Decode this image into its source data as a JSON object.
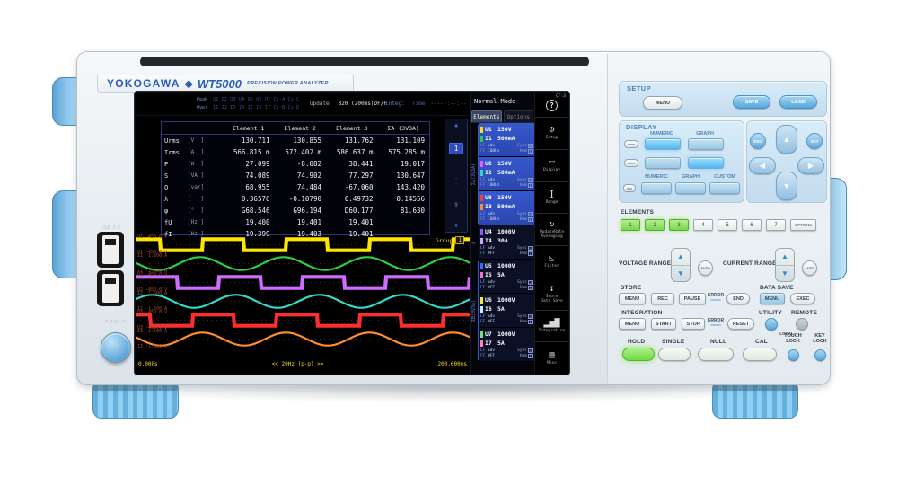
{
  "brand": {
    "logo": "YOKOGAWA",
    "diamond": "◆",
    "model": "WT5000",
    "subtitle": "PRECISION POWER ANALYZER"
  },
  "left_side": {
    "usb_label": "USB 2.0",
    "power_label": "POWER"
  },
  "screen": {
    "status": {
      "peak_label": "Peak",
      "peak_values": "U1 U2 U3 U4 U5 U6 U7 Cs-A Cs-C",
      "over_label": "Over",
      "over_values": "I1 I2 I3 I4 I5 I6 I7 Cs-B Cs-D",
      "update_label": "Update",
      "update_value": "320 (200ms)DF/F",
      "integ_label": "Integ:",
      "time_label": "Time",
      "time_value": "-----:--:--",
      "mode": "Normal Mode"
    },
    "table": {
      "headers": [
        "Element 1",
        "Element 2",
        "Element 3",
        "ΣA (3V3A)"
      ],
      "rows": [
        {
          "name": "Urms",
          "unit": "[V  ]",
          "values": [
            "130.711",
            "130.855",
            "131.762",
            "131.109"
          ]
        },
        {
          "name": "Irms",
          "unit": "[A  ]",
          "values": [
            "566.815 m",
            "572.402 m",
            "586.637 m",
            "575.285 m"
          ]
        },
        {
          "name": "P",
          "unit": "[W  ]",
          "values": [
            "27.099",
            "-8.082",
            "38.441",
            "19.017"
          ]
        },
        {
          "name": "S",
          "unit": "[VA ]",
          "values": [
            "74.089",
            "74.902",
            "77.297",
            "130.647"
          ]
        },
        {
          "name": "Q",
          "unit": "[var]",
          "values": [
            "68.955",
            "74.484",
            "-67.060",
            "143.420"
          ]
        },
        {
          "name": "λ",
          "unit": "[   ]",
          "values": [
            "0.36576",
            "-0.10790",
            "0.49732",
            "0.14556"
          ]
        },
        {
          "name": "φ",
          "unit": "[°  ]",
          "values": [
            "G68.546",
            "G96.194",
            "D60.177",
            "81.630"
          ]
        },
        {
          "name": "fU",
          "unit": "[Hz ]",
          "values": [
            "19.400",
            "19.401",
            "19.401",
            ""
          ]
        },
        {
          "name": "fI",
          "unit": "[Hz ]",
          "values": [
            "19.399",
            "19.403",
            "19.401",
            ""
          ]
        }
      ]
    },
    "pager": {
      "up": "▲",
      "current": "1",
      "dots": "·\n·\n·",
      "last": "9",
      "down": "▼"
    },
    "elements_panel": {
      "tabs": [
        "Elements",
        "Options"
      ],
      "group_a": "ΣA(3V3A)",
      "group_4": "4",
      "group_b": "ΣB(3V3A)",
      "items": [
        {
          "u": "U1",
          "u_range": "150V",
          "u_color": "#ffdf00",
          "i": "I1",
          "i_range": "500mA",
          "i_color": "#2ecc40",
          "lf": "LF",
          "ff": "FF",
          "adv": "Adv",
          "freq": "100Hz",
          "sync": "Sync",
          "hrm": "Hrm",
          "sync_badge": "U",
          "hrm_badge": "1",
          "active": true
        },
        {
          "u": "U2",
          "u_range": "150V",
          "u_color": "#e55fff",
          "i": "I2",
          "i_range": "500mA",
          "i_color": "#35d8c5",
          "lf": "LF",
          "ff": "FF",
          "adv": "Adv",
          "freq": "100Hz",
          "sync": "Sync",
          "hrm": "Hrm",
          "sync_badge": "U",
          "hrm_badge": "1",
          "active": true
        },
        {
          "u": "U3",
          "u_range": "150V",
          "u_color": "#ff3b30",
          "i": "I3",
          "i_range": "500mA",
          "i_color": "#ff8c2e",
          "lf": "LF",
          "ff": "FF",
          "adv": "Adv",
          "freq": "100Hz",
          "sync": "Sync",
          "hrm": "Hrm",
          "sync_badge": "U",
          "hrm_badge": "1",
          "active": true
        },
        {
          "u": "U4",
          "u_range": "1000V",
          "u_color": "#8f5bff",
          "i": "I4",
          "i_range": "30A",
          "i_color": "#c9a6ff",
          "lf": "LF",
          "ff": "FF",
          "adv": "Adv",
          "freq": "OFF",
          "sync": "Sync",
          "hrm": "Hrm",
          "sync_badge": "U",
          "hrm_badge": "1",
          "active": false
        },
        {
          "u": "U5",
          "u_range": "1000V",
          "u_color": "#3d6bff",
          "i": "I5",
          "i_range": "5A",
          "i_color": "#ff6ec4",
          "lf": "LF",
          "ff": "FF",
          "adv": "Adv",
          "freq": "OFF",
          "sync": "Sync",
          "hrm": "Hrm",
          "sync_badge": "U",
          "hrm_badge": "1",
          "active": false
        },
        {
          "u": "U6",
          "u_range": "1000V",
          "u_color": "#f3e93c",
          "i": "I6",
          "i_range": "5A",
          "i_color": "#bfeeff",
          "lf": "LF",
          "ff": "FF",
          "adv": "Adv",
          "freq": "OFF",
          "sync": "Sync",
          "hrm": "Hrm",
          "sync_badge": "U",
          "hrm_badge": "1",
          "active": false
        },
        {
          "u": "U7",
          "u_range": "1000V",
          "u_color": "#6ee76e",
          "i": "I7",
          "i_range": "5A",
          "i_color": "#ff85b3",
          "lf": "LF",
          "ff": "FF",
          "adv": "Adv",
          "freq": "OFF",
          "sync": "Sync",
          "hrm": "Hrm",
          "sync_badge": "U",
          "hrm_badge": "1",
          "active": false
        }
      ]
    },
    "sidebar": {
      "cf_badge": "CF:3",
      "help_glyph": "?",
      "items": [
        {
          "name": "setup",
          "glyph": "⚙",
          "label": "Setup"
        },
        {
          "name": "display",
          "glyph": "▭",
          "label": "Display"
        },
        {
          "name": "range",
          "glyph": "I",
          "label": "Range"
        },
        {
          "name": "update-rate",
          "glyph": "↻",
          "label": "UpdateRate\nAveraging"
        },
        {
          "name": "filter",
          "glyph": "◺",
          "label": "Filter"
        },
        {
          "name": "store",
          "glyph": "↧",
          "label": "Store\nData Save"
        },
        {
          "name": "integration",
          "glyph": "▂▅▇",
          "label": "Integration"
        },
        {
          "name": "misc",
          "glyph": "▤",
          "label": "Misc"
        }
      ]
    },
    "waveform": {
      "group_label": "Group",
      "group_number": "1",
      "x_left": "0.000s",
      "x_center": "<< 20Hz (p-p) >>",
      "x_right": "200.000ms",
      "traces": [
        {
          "id": "U1",
          "shape": "square",
          "color": "#ffe600",
          "label_top": "U1  450.0 V",
          "label_bottom": "U1 -450.0 V",
          "cycles": 4,
          "phase": 0.2
        },
        {
          "id": "I1",
          "shape": "sine",
          "color": "#2ecc40",
          "label_top": "I1  1.500 A",
          "label_bottom": "I1 -1.500 A",
          "cycles": 4,
          "phase": 0.23
        },
        {
          "id": "U2",
          "shape": "square",
          "color": "#cf6bff",
          "label_top": "U2  450.0 V",
          "label_bottom": "U2 -450.0 V",
          "cycles": 4,
          "phase": 0.0
        },
        {
          "id": "I2",
          "shape": "sine",
          "color": "#35d8c5",
          "label_top": "I2  1.500 A",
          "label_bottom": "I2 -1.500 A",
          "cycles": 4,
          "phase": 0.8
        },
        {
          "id": "U3",
          "shape": "square",
          "color": "#ff2e2e",
          "label_top": "U3  450.0 V",
          "label_bottom": "U3 -450.0 V",
          "cycles": 4,
          "phase": 0.32
        },
        {
          "id": "I3",
          "shape": "sine",
          "color": "#ff8c2e",
          "label_top": "I3  1.500 A",
          "label_bottom": "I3 -1.500 A",
          "cycles": 4,
          "phase": 0.2
        }
      ]
    }
  },
  "control_panel": {
    "setup": {
      "title": "SETUP",
      "menu": "MENU",
      "save": "SAVE",
      "load": "LOAD"
    },
    "display": {
      "title": "DISPLAY",
      "row1_labels": [
        "NUMERIC",
        "GRAPH"
      ],
      "row2_labels": [
        "NUMERIC",
        "GRAPH",
        "CUSTOM"
      ]
    },
    "nav": {
      "esc": "ESC",
      "set": "SET",
      "up": "▲",
      "down": "▼",
      "left": "◀",
      "right": "▶"
    },
    "elements": {
      "title": "ELEMENTS",
      "buttons": [
        "1",
        "2",
        "3",
        "4",
        "5",
        "6",
        "7"
      ],
      "active_count": 3,
      "options_button": "OPTIONS"
    },
    "ranges": {
      "voltage": "VOLTAGE RANGE",
      "current": "CURRENT RANGE",
      "auto": "AUTO",
      "up": "▲",
      "down": "▼"
    },
    "store": {
      "title": "STORE",
      "menu": "MENU",
      "rec": "REC",
      "pause": "PAUSE",
      "error": "ERROR",
      "end": "END"
    },
    "data_save": {
      "title": "DATA SAVE",
      "menu": "MENU",
      "exec": "EXEC"
    },
    "integration": {
      "title": "INTEGRATION",
      "menu": "MENU",
      "start": "START",
      "stop": "STOP",
      "error": "ERROR",
      "reset": "RESET"
    },
    "utility": {
      "utility": "UTILITY",
      "remote": "REMOTE",
      "local": "LOCAL"
    },
    "action_row": {
      "hold": "HOLD",
      "single": "SINGLE",
      "null_label": "NULL",
      "cal": "CAL"
    },
    "locks": {
      "touch": "TOUCH\nLOCK",
      "key": "KEY\nLOCK"
    }
  }
}
